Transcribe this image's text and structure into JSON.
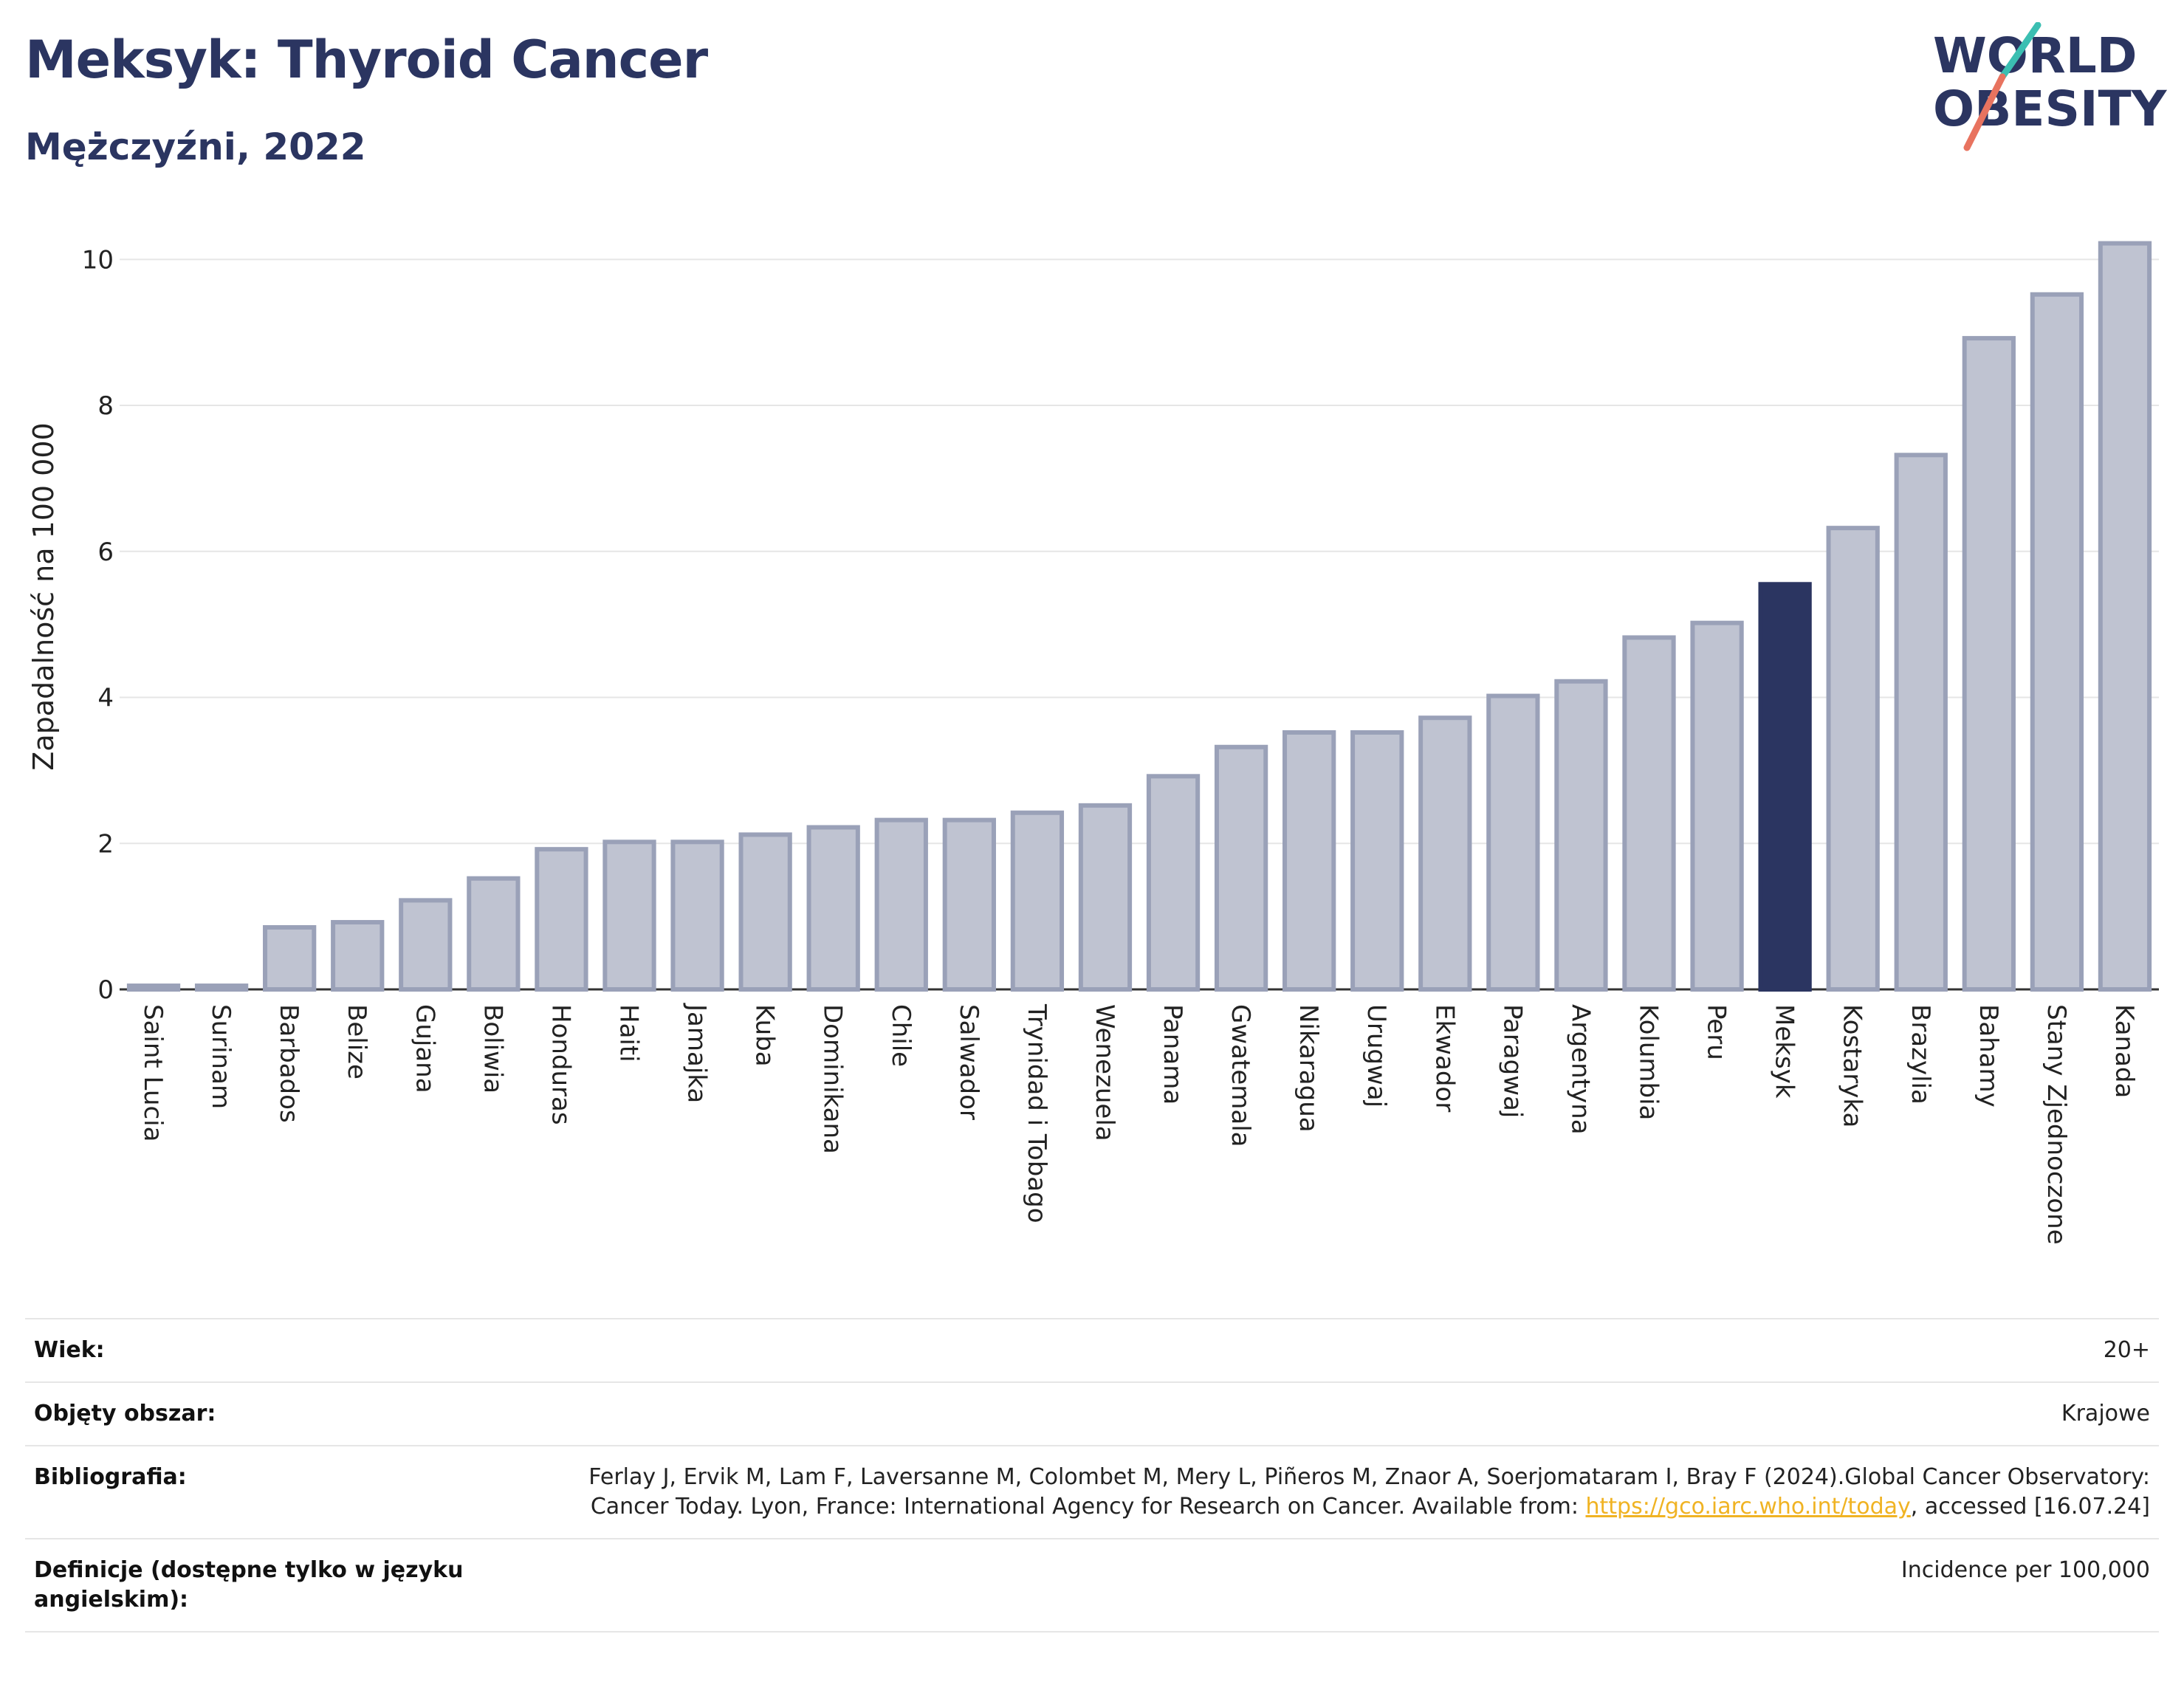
{
  "header": {
    "title": "Meksyk: Thyroid Cancer",
    "subtitle": "Mężczyźni, 2022"
  },
  "logo": {
    "line1": "WORLD",
    "line2": "OBESITY",
    "accent_teal": "#3bbfb2",
    "accent_coral": "#e8735f"
  },
  "colors": {
    "bar": "#bfc3d1",
    "bar_stroke": "#9aa1b8",
    "highlight": "#2b3561",
    "grid": "#e6e6e6"
  },
  "chart_data": {
    "type": "bar",
    "ylabel": "Zapadalność na 100 000",
    "ylim": [
      0,
      10.6
    ],
    "yticks": [
      0,
      2,
      4,
      6,
      8,
      10
    ],
    "grid": true,
    "highlight": "Meksyk",
    "categories": [
      "Saint Lucia",
      "Surinam",
      "Barbados",
      "Belize",
      "Gujana",
      "Boliwia",
      "Honduras",
      "Haiti",
      "Jamajka",
      "Kuba",
      "Dominikana",
      "Chile",
      "Salwador",
      "Trynidad i Tobago",
      "Wenezuela",
      "Panama",
      "Gwatemala",
      "Nikaragua",
      "Urugwaj",
      "Ekwador",
      "Paragwaj",
      "Argentyna",
      "Kolumbia",
      "Peru",
      "Meksyk",
      "Kostaryka",
      "Brazylia",
      "Bahamy",
      "Stany Zjednoczone",
      "Kanada"
    ],
    "values": [
      0.05,
      0.05,
      0.85,
      0.92,
      1.22,
      1.52,
      1.92,
      2.02,
      2.02,
      2.12,
      2.22,
      2.32,
      2.32,
      2.42,
      2.52,
      2.92,
      3.32,
      3.52,
      3.52,
      3.72,
      4.02,
      4.22,
      4.82,
      5.02,
      5.55,
      6.32,
      7.32,
      8.92,
      9.52,
      10.22
    ]
  },
  "meta": {
    "age_label": "Wiek:",
    "age_value": "20+",
    "coverage_label": "Objęty obszar:",
    "coverage_value": "Krajowe",
    "bib_label": "Bibliografia:",
    "bib_text1": "Ferlay J, Ervik M, Lam F, Laversanne M, Colombet M, Mery L, Piñeros M, Znaor A, Soerjomataram I, Bray F (2024).Global Cancer Observatory: Cancer Today. Lyon, France: International Agency for Research on Cancer. Available from: ",
    "bib_link": "https://gco.iarc.who.int/today",
    "bib_text2": ", accessed [16.07.24]",
    "def_label": "Definicje (dostępne tylko w języku angielskim):",
    "def_value": "Incidence per 100,000"
  }
}
